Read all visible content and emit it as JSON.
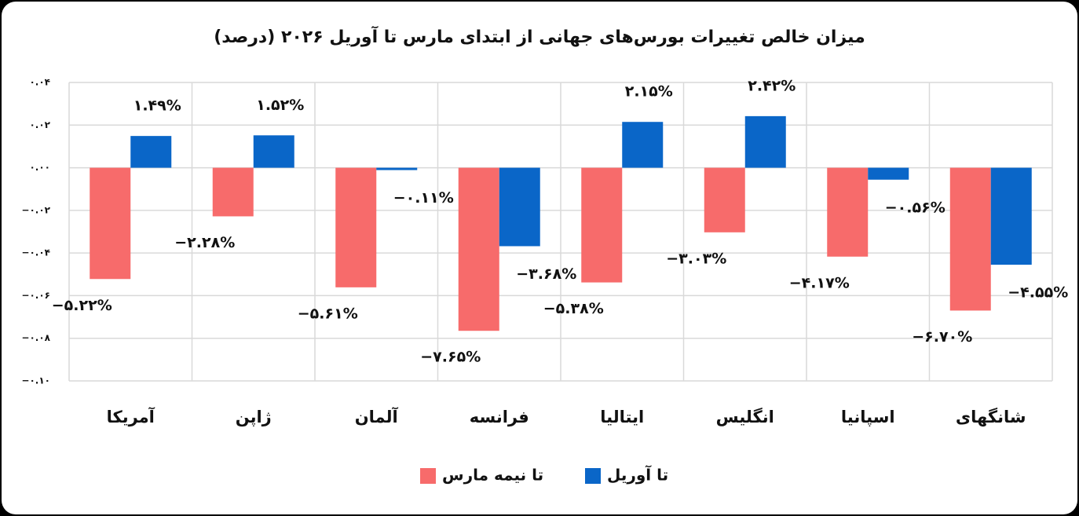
{
  "chart_data": {
    "type": "bar",
    "title": "میزان خالص تغییرات بورس‌های جهانی از ابتدای مارس تا آوریل ۲۰۲۶ (درصد)",
    "categories": [
      "آمریکا",
      "ژاپن",
      "آلمان",
      "فرانسه",
      "ایتالیا",
      "انگلیس",
      "اسپانیا",
      "شانگهای"
    ],
    "series": [
      {
        "name": "تا نیمه مارس",
        "color": "#f76b6b",
        "values": [
          -0.0522,
          -0.0228,
          -0.0561,
          -0.0765,
          -0.0538,
          -0.0303,
          -0.0417,
          -0.067
        ],
        "value_labels": [
          "−۵.۲۲%",
          "−۲.۲۸%",
          "−۵.۶۱%",
          "−۷.۶۵%",
          "−۵.۳۸%",
          "−۳.۰۳%",
          "−۴.۱۷%",
          "−۶.۷۰%"
        ]
      },
      {
        "name": "تا آوریل",
        "color": "#0a66c8",
        "values": [
          0.0149,
          0.0152,
          -0.0011,
          -0.0368,
          0.0215,
          0.0242,
          -0.0056,
          -0.0455
        ],
        "value_labels": [
          "۱.۴۹%",
          "۱.۵۲%",
          "−۰.۱۱%",
          "−۳.۶۸%",
          "۲.۱۵%",
          "۲.۴۲%",
          "−۰.۵۶%",
          "−۴.۵۵%"
        ]
      }
    ],
    "ylim": [
      -0.1,
      0.04
    ],
    "yticks": [
      {
        "value": 0.04,
        "label": "۰.۰۴"
      },
      {
        "value": 0.02,
        "label": "۰.۰۲"
      },
      {
        "value": 0,
        "label": "۰.۰۰"
      },
      {
        "value": -0.02,
        "label": "−۰.۰۲"
      },
      {
        "value": -0.04,
        "label": "−۰.۰۴"
      },
      {
        "value": -0.06,
        "label": "−۰.۰۶"
      },
      {
        "value": -0.08,
        "label": "−۰.۰۸"
      },
      {
        "value": -0.1,
        "label": "−۰.۱۰"
      }
    ],
    "grid": true
  }
}
